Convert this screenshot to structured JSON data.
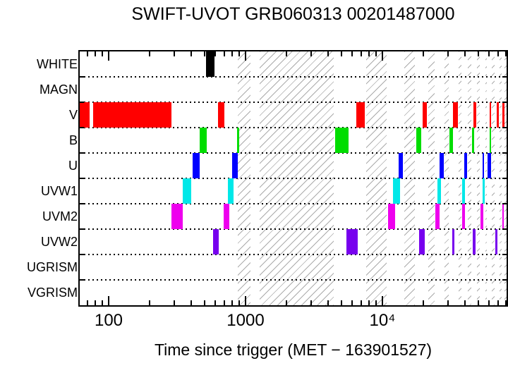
{
  "title": "SWIFT-UVOT GRB060313 00201487000",
  "xlabel": "Time since trigger (MET − 163901527)",
  "chart_data": {
    "type": "interval-timeline",
    "x_scale": "log",
    "xlim": [
      61.5,
      80760
    ],
    "x_axis": {
      "major_ticks": [
        {
          "value": 100,
          "label": "100"
        },
        {
          "value": 1000,
          "label": "1000"
        },
        {
          "value": 10000,
          "label": "10⁴"
        }
      ],
      "minor_ticks": [
        70,
        80,
        90,
        200,
        300,
        400,
        500,
        600,
        700,
        800,
        900,
        2000,
        3000,
        4000,
        5000,
        6000,
        7000,
        8000,
        9000,
        20000,
        30000,
        40000,
        50000,
        60000,
        70000,
        80000
      ]
    },
    "rows": [
      {
        "label": "WHITE",
        "color": "#000000",
        "intervals": [
          [
            515,
            593
          ]
        ]
      },
      {
        "label": "MAGN",
        "color": "#000000",
        "intervals": []
      },
      {
        "label": "V",
        "color": "#ff0000",
        "intervals": [
          [
            61.5,
            73
          ],
          [
            77,
            287
          ],
          [
            630,
            700
          ],
          [
            6440,
            7430
          ],
          [
            19700,
            21100
          ],
          [
            32750,
            35600
          ],
          [
            46200,
            48500
          ],
          [
            60800,
            62260
          ],
          [
            68400,
            70900
          ],
          [
            75200,
            77900
          ]
        ]
      },
      {
        "label": "B",
        "color": "#00dd00",
        "intervals": [
          [
            462,
            520
          ],
          [
            867,
            899
          ],
          [
            4516,
            5660
          ],
          [
            17670,
            19230
          ],
          [
            30930,
            32750
          ],
          [
            45190,
            46770
          ],
          [
            60800,
            62260
          ]
        ]
      },
      {
        "label": "U",
        "color": "#0000ff",
        "intervals": [
          [
            410,
            462
          ],
          [
            798,
            877
          ],
          [
            13150,
            14100
          ],
          [
            26180,
            28050
          ],
          [
            39630,
            41590
          ],
          [
            53950,
            55210
          ],
          [
            58600,
            62260
          ]
        ]
      },
      {
        "label": "UVW1",
        "color": "#00e8e8",
        "intervals": [
          [
            348,
            401
          ],
          [
            743,
            817
          ],
          [
            11940,
            13460
          ],
          [
            25240,
            26790
          ],
          [
            38280,
            40090
          ],
          [
            53950,
            55850
          ]
        ]
      },
      {
        "label": "UVM2",
        "color": "#ee00ee",
        "intervals": [
          [
            288,
            348
          ],
          [
            692,
            760
          ],
          [
            10990,
            12380
          ],
          [
            24380,
            26180
          ],
          [
            38280,
            40090
          ],
          [
            52110,
            54570
          ],
          [
            75200,
            76800
          ]
        ]
      },
      {
        "label": "UVW2",
        "color": "#7700ee",
        "intervals": [
          [
            579,
            637
          ],
          [
            5460,
            6600
          ],
          [
            18540,
            20370
          ],
          [
            32360,
            33570
          ],
          [
            45710,
            47860
          ],
          [
            66830,
            69180
          ]
        ]
      },
      {
        "label": "UGRISM",
        "color": "#000000",
        "intervals": []
      },
      {
        "label": "VGRISM",
        "color": "#000000",
        "intervals": []
      }
    ],
    "shaded_region": {
      "style": "diagonal-hatch",
      "line_color": "#ababab",
      "start": 880,
      "end": 80760,
      "gaps": [
        [
          1090,
          1270
        ],
        [
          4400,
          7600
        ],
        [
          10800,
          14400
        ],
        [
          17300,
          21600
        ],
        [
          24000,
          28500
        ],
        [
          30500,
          36000
        ],
        [
          37800,
          42000
        ],
        [
          44800,
          49000
        ],
        [
          51700,
          56200
        ],
        [
          58200,
          62800
        ],
        [
          66400,
          71300
        ],
        [
          74700,
          78300
        ]
      ]
    },
    "grid": "dotted-row-separators",
    "legend": "none"
  },
  "colors": {
    "axis": "#000000",
    "background": "#ffffff",
    "row_separator": "#000000"
  }
}
